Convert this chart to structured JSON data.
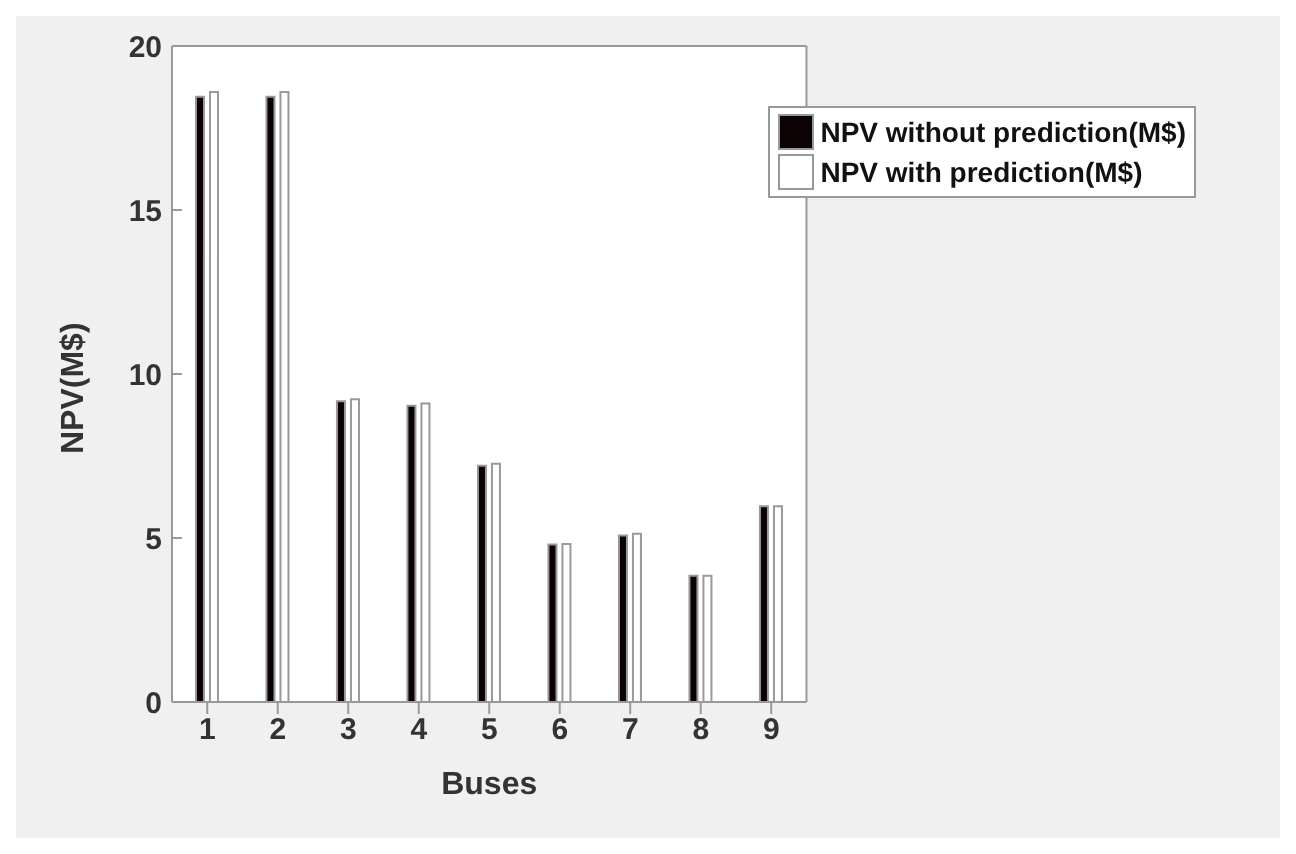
{
  "chart_data": {
    "type": "bar",
    "xlabel": "Buses",
    "ylabel": "NPV(M$)",
    "categories": [
      "1",
      "2",
      "3",
      "4",
      "5",
      "6",
      "7",
      "8",
      "9"
    ],
    "series": [
      {
        "name": "NPV  without prediction(M$)",
        "color": "#0a0203",
        "values": [
          18.45,
          18.45,
          9.17,
          9.03,
          7.2,
          4.8,
          5.08,
          3.85,
          5.97
        ]
      },
      {
        "name": "NPV  with prediction(M$)",
        "color": "#ffffff",
        "values": [
          18.6,
          18.6,
          9.23,
          9.1,
          7.26,
          4.82,
          5.13,
          3.85,
          5.97
        ]
      }
    ],
    "ylim": [
      0,
      20
    ],
    "yticks": [
      0,
      5,
      10,
      15,
      20
    ],
    "legend": "top right"
  }
}
